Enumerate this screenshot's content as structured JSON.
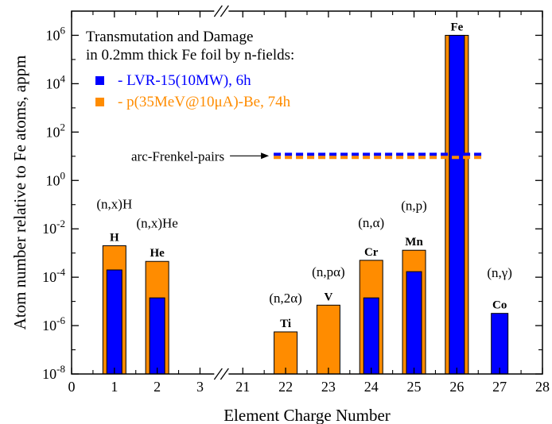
{
  "chart_data": {
    "type": "bar",
    "title_lines": [
      "Transmutation and Damage",
      "in 0.2mm thick Fe foil by n-fields:"
    ],
    "xlabel": "Element Charge Number",
    "ylabel": "Atom number relative to Fe atoms,  appm",
    "y_scale": "log",
    "ylim": [
      1e-08,
      10000000.0
    ],
    "y_ticks": [
      {
        "value": 1e-08,
        "mant": "10",
        "exp": "-8"
      },
      {
        "value": 1e-06,
        "mant": "10",
        "exp": "-6"
      },
      {
        "value": 0.0001,
        "mant": "10",
        "exp": "-4"
      },
      {
        "value": 0.01,
        "mant": "10",
        "exp": "-2"
      },
      {
        "value": 1.0,
        "mant": "10",
        "exp": "0"
      },
      {
        "value": 100.0,
        "mant": "10",
        "exp": "2"
      },
      {
        "value": 10000.0,
        "mant": "10",
        "exp": "4"
      },
      {
        "value": 1000000.0,
        "mant": "10",
        "exp": "6"
      }
    ],
    "x_ticks": [
      "0",
      "1",
      "2",
      "3",
      "21",
      "22",
      "23",
      "24",
      "25",
      "26",
      "27",
      "28"
    ],
    "axis_break_symbol": "//",
    "series": [
      {
        "name": "LVR-15(10MW), 6h",
        "color": "#0000ff",
        "legend_label": "- LVR-15(10MW), 6h"
      },
      {
        "name": "p(35MeV@10μA)-Be, 74h",
        "color": "#ff8c00",
        "legend_label": "- p(35MeV@10μA)-Be, 74h"
      }
    ],
    "bars": [
      {
        "element": "H",
        "z": "1",
        "lvr": 0.0002,
        "p_be": 0.002
      },
      {
        "element": "He",
        "z": "2",
        "lvr": 1.4e-05,
        "p_be": 0.00045
      },
      {
        "element": "Ti",
        "z": "22",
        "lvr": null,
        "p_be": 5.5e-07
      },
      {
        "element": "V",
        "z": "23",
        "lvr": null,
        "p_be": 7e-06
      },
      {
        "element": "Cr",
        "z": "24",
        "lvr": 1.4e-05,
        "p_be": 0.0005
      },
      {
        "element": "Mn",
        "z": "25",
        "lvr": 0.00017,
        "p_be": 0.0013
      },
      {
        "element": "Fe",
        "z": "26",
        "lvr": 1000000.0,
        "p_be": 1000000.0
      },
      {
        "element": "Co",
        "z": "27",
        "lvr": 3.2e-06,
        "p_be": null
      }
    ],
    "reactions": [
      {
        "text": "(n,x)H",
        "z": "1",
        "y": 0.07
      },
      {
        "text": "(n,x)He",
        "z": "2",
        "y": 0.0115
      },
      {
        "text": "(n,2α)",
        "z": "22",
        "y": 9e-06
      },
      {
        "text": "(n,pα)",
        "z": "23",
        "y": 0.00011
      },
      {
        "text": "(n,α)",
        "z": "24",
        "y": 0.012
      },
      {
        "text": "(n,p)",
        "z": "25",
        "y": 0.06
      },
      {
        "text": "(n,γ)",
        "z": "27",
        "y": 0.0001
      }
    ],
    "frenkel": {
      "label": "arc-Frenkel-pairs",
      "z_start": "22",
      "z_end": "27",
      "lvr": 12,
      "p_be": 9
    }
  }
}
